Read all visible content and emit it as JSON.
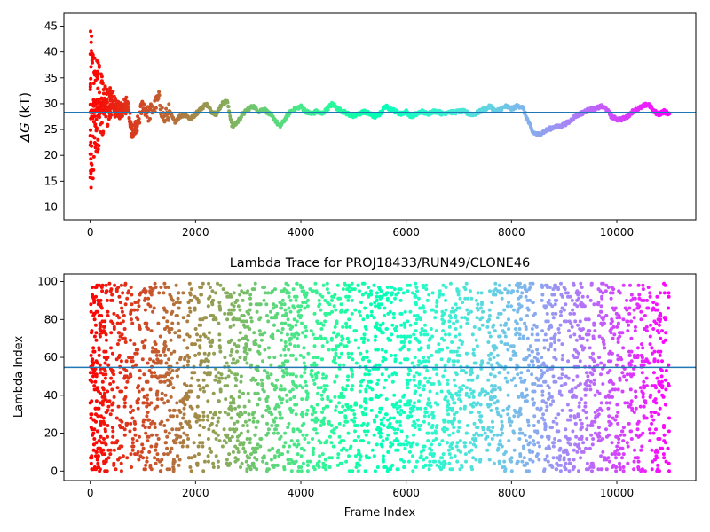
{
  "chart_data": [
    {
      "type": "scatter",
      "title": "",
      "xlabel": "",
      "ylabel_math": "ΔG",
      "ylabel_unit": " (kT)",
      "xlim": [
        -500,
        11500
      ],
      "ylim": [
        7.5,
        47.5
      ],
      "xticks": [
        0,
        2000,
        4000,
        6000,
        8000,
        10000
      ],
      "yticks": [
        10,
        15,
        20,
        25,
        30,
        35,
        40,
        45
      ],
      "hline": 28.3,
      "color_by_x": "rainbow_r (red at frame 0 to violet at frame 11000)",
      "x_max": 11000,
      "trace": [
        [
          0,
          28
        ],
        [
          100,
          29.5
        ],
        [
          200,
          30
        ],
        [
          300,
          29
        ],
        [
          400,
          30.5
        ],
        [
          500,
          29
        ],
        [
          600,
          28.5
        ],
        [
          700,
          30
        ],
        [
          800,
          24
        ],
        [
          900,
          26
        ],
        [
          1000,
          30
        ],
        [
          1100,
          28
        ],
        [
          1200,
          29
        ],
        [
          1300,
          31
        ],
        [
          1400,
          27
        ],
        [
          1500,
          28.5
        ],
        [
          1600,
          26.5
        ],
        [
          1700,
          27.5
        ],
        [
          1800,
          28
        ],
        [
          1900,
          27
        ],
        [
          2000,
          28
        ],
        [
          2100,
          29
        ],
        [
          2200,
          30
        ],
        [
          2300,
          28.5
        ],
        [
          2400,
          28
        ],
        [
          2500,
          30
        ],
        [
          2600,
          30.5
        ],
        [
          2700,
          25.5
        ],
        [
          2800,
          26.5
        ],
        [
          2900,
          28
        ],
        [
          3000,
          29
        ],
        [
          3100,
          29.5
        ],
        [
          3200,
          28.5
        ],
        [
          3300,
          29
        ],
        [
          3400,
          28
        ],
        [
          3500,
          27
        ],
        [
          3600,
          25.5
        ],
        [
          3700,
          27
        ],
        [
          3800,
          28.5
        ],
        [
          3900,
          29
        ],
        [
          4000,
          29.5
        ],
        [
          4100,
          28.5
        ],
        [
          4200,
          28
        ],
        [
          4300,
          28.5
        ],
        [
          4400,
          28
        ],
        [
          4500,
          29
        ],
        [
          4600,
          30
        ],
        [
          4700,
          29
        ],
        [
          4800,
          28.5
        ],
        [
          4900,
          28
        ],
        [
          5000,
          27.5
        ],
        [
          5100,
          28
        ],
        [
          5200,
          28.5
        ],
        [
          5300,
          28
        ],
        [
          5400,
          27.5
        ],
        [
          5500,
          28
        ],
        [
          5600,
          29.5
        ],
        [
          5700,
          29
        ],
        [
          5800,
          28.5
        ],
        [
          5900,
          28
        ],
        [
          6000,
          28.5
        ],
        [
          6100,
          27.5
        ],
        [
          6200,
          28
        ],
        [
          6300,
          28.5
        ],
        [
          6400,
          28
        ],
        [
          6500,
          28.5
        ],
        [
          6600,
          28.5
        ],
        [
          6700,
          28
        ],
        [
          6800,
          28.5
        ],
        [
          6900,
          28.3
        ],
        [
          7000,
          28.5
        ],
        [
          7100,
          28.5
        ],
        [
          7200,
          28
        ],
        [
          7300,
          28
        ],
        [
          7400,
          28.5
        ],
        [
          7500,
          29
        ],
        [
          7600,
          29.5
        ],
        [
          7700,
          28.5
        ],
        [
          7800,
          29
        ],
        [
          7900,
          29.5
        ],
        [
          8000,
          29
        ],
        [
          8100,
          29.5
        ],
        [
          8200,
          29.5
        ],
        [
          8300,
          27
        ],
        [
          8400,
          24.5
        ],
        [
          8500,
          24
        ],
        [
          8600,
          24.5
        ],
        [
          8700,
          25
        ],
        [
          8800,
          25.5
        ],
        [
          8900,
          25.5
        ],
        [
          9000,
          26
        ],
        [
          9100,
          26.5
        ],
        [
          9200,
          27.5
        ],
        [
          9300,
          28
        ],
        [
          9400,
          28.5
        ],
        [
          9500,
          29
        ],
        [
          9600,
          29
        ],
        [
          9700,
          29.5
        ],
        [
          9800,
          29
        ],
        [
          9900,
          27.5
        ],
        [
          10000,
          27
        ],
        [
          10100,
          27
        ],
        [
          10200,
          27.5
        ],
        [
          10300,
          28.5
        ],
        [
          10400,
          29
        ],
        [
          10500,
          29.5
        ],
        [
          10600,
          30
        ],
        [
          10700,
          28.5
        ],
        [
          10800,
          28
        ],
        [
          10900,
          28.5
        ],
        [
          11000,
          28
        ]
      ],
      "early_scatter_range": [
        10,
        44
      ]
    },
    {
      "type": "scatter",
      "title": "Lambda Trace for PROJ18433/RUN49/CLONE46",
      "xlabel": "Frame Index",
      "ylabel": "Lambda Index",
      "xlim": [
        -500,
        11500
      ],
      "ylim": [
        -5,
        104
      ],
      "xticks": [
        0,
        2000,
        4000,
        6000,
        8000,
        10000
      ],
      "yticks": [
        0,
        20,
        40,
        60,
        80,
        100
      ],
      "hline": 54.7,
      "color_by_x": "rainbow_r (red at frame 0 to violet at frame 11000)",
      "x_max": 11000,
      "value_range": [
        0,
        99
      ]
    }
  ]
}
